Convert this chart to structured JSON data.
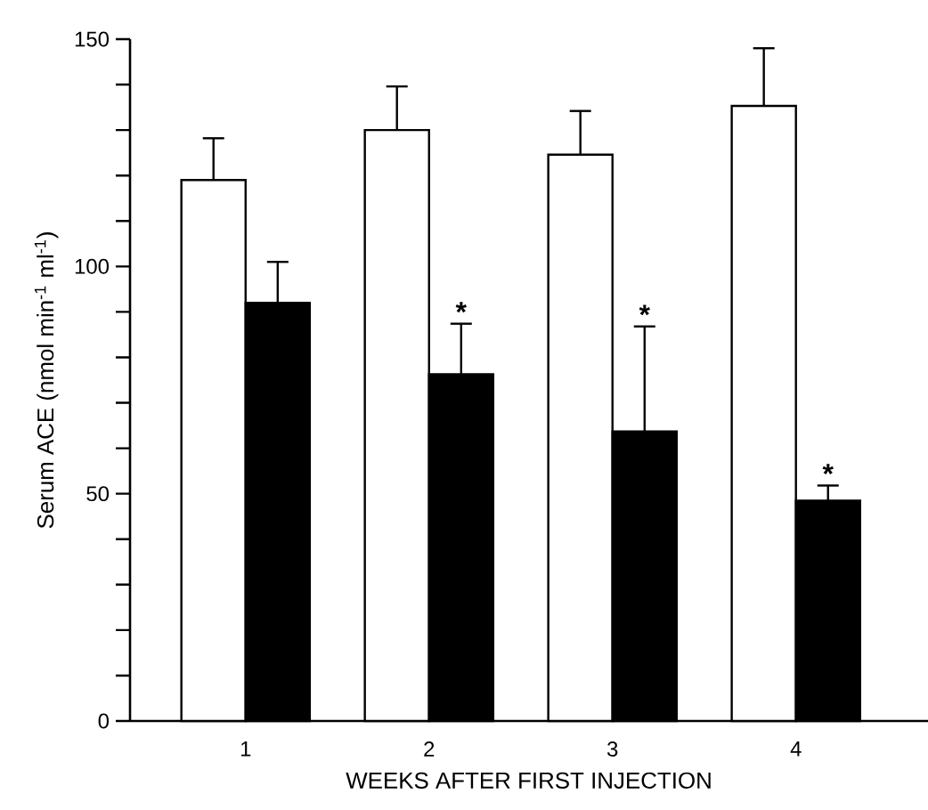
{
  "chart_data": {
    "type": "bar",
    "categories": [
      "1",
      "2",
      "3",
      "4"
    ],
    "series": [
      {
        "color": "#ffffff",
        "values": [
          119,
          130,
          124.6,
          135.3
        ],
        "errors": [
          [
            119,
            128.2
          ],
          [
            130,
            139.6
          ],
          [
            124.6,
            134.2
          ],
          [
            135.3,
            148
          ]
        ]
      },
      {
        "color": "#000000",
        "values": [
          92,
          76.3,
          63.7,
          48.5
        ],
        "errors": [
          [
            92,
            101
          ],
          [
            76.3,
            87.4
          ],
          [
            63.7,
            86.8
          ],
          [
            48.5,
            51.8
          ]
        ]
      }
    ],
    "xlabel": "WEEKS AFTER FIRST INJECTION",
    "ylabel": "Serum ACE (nmol min$^{-1}$ ml$^{-1}$)",
    "ylim": [
      0,
      150
    ],
    "yticks": [
      0,
      {
        "value": 10,
        "label": null
      },
      {
        "value": 20,
        "label": null
      },
      {
        "value": 30,
        "label": null
      },
      {
        "value": 40,
        "label": null
      },
      50,
      {
        "value": 60,
        "label": null
      },
      {
        "value": 70,
        "label": null
      },
      {
        "value": 80,
        "label": null
      },
      {
        "value": 90,
        "label": null
      },
      100,
      {
        "value": 110,
        "label": null
      },
      {
        "value": 120,
        "label": null
      },
      {
        "value": 130,
        "label": null
      },
      {
        "value": 140,
        "label": null
      },
      150
    ],
    "annotations": [
      {
        "text": "*",
        "x": "2",
        "y": 87.4
      },
      {
        "text": "*",
        "x": "3",
        "y": 86.8
      },
      {
        "text": "*",
        "x": "4",
        "y": 51.8
      }
    ],
    "grid": false
  }
}
